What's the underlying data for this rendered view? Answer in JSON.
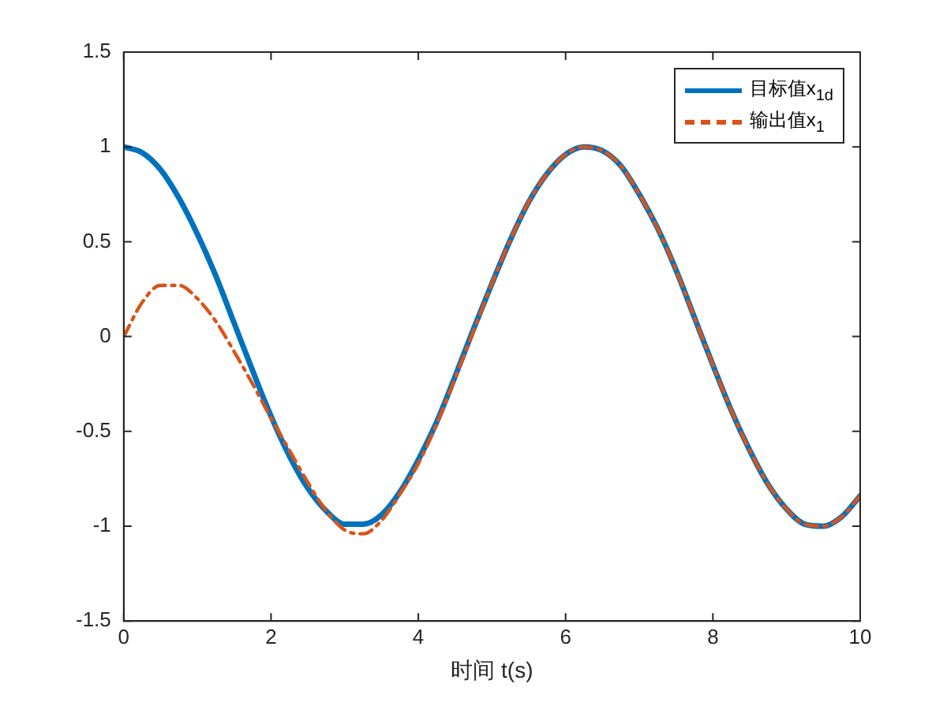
{
  "chart_data": {
    "type": "line",
    "xlabel": "时间 t(s)",
    "x": [
      0,
      0.25,
      0.5,
      0.75,
      1,
      1.25,
      1.5,
      1.75,
      2,
      2.25,
      2.5,
      2.75,
      3,
      3.25,
      3.5,
      3.75,
      4,
      4.25,
      4.5,
      4.75,
      5,
      5.25,
      5.5,
      5.75,
      6,
      6.25,
      6.5,
      6.75,
      7,
      7.25,
      7.5,
      7.75,
      8,
      8.25,
      8.5,
      8.75,
      9,
      9.25,
      9.5,
      9.75,
      10
    ],
    "series": [
      {
        "name": "目标值x$_{1d}$",
        "color": "#0072bd",
        "line_style": "solid",
        "values": [
          1,
          0.97,
          0.88,
          0.73,
          0.54,
          0.32,
          0.07,
          -0.18,
          -0.42,
          -0.63,
          -0.8,
          -0.92,
          -0.99,
          -0.99,
          -0.94,
          -0.82,
          -0.65,
          -0.45,
          -0.21,
          0.04,
          0.28,
          0.51,
          0.71,
          0.86,
          0.96,
          1,
          0.98,
          0.9,
          0.75,
          0.57,
          0.35,
          0.1,
          -0.15,
          -0.39,
          -0.6,
          -0.78,
          -0.91,
          -0.99,
          -1,
          -0.95,
          -0.84
        ]
      },
      {
        "name": "输出值x$_{1}$",
        "color": "#d95319",
        "line_style": "dashed",
        "values": [
          0,
          0.18,
          0.27,
          0.27,
          0.2,
          0.08,
          -0.08,
          -0.25,
          -0.43,
          -0.6,
          -0.77,
          -0.92,
          -1.02,
          -1.04,
          -0.97,
          -0.83,
          -0.67,
          -0.46,
          -0.22,
          0.03,
          0.28,
          0.51,
          0.71,
          0.86,
          0.96,
          1,
          0.98,
          0.9,
          0.75,
          0.57,
          0.35,
          0.1,
          -0.15,
          -0.39,
          -0.6,
          -0.78,
          -0.91,
          -0.99,
          -1,
          -0.95,
          -0.84
        ]
      }
    ],
    "xlim": [
      0,
      10
    ],
    "xticks": [
      0,
      2,
      4,
      6,
      8,
      10
    ],
    "ylim": [
      -1.5,
      1.5
    ],
    "yticks": [
      -1.5,
      -1,
      -0.5,
      0,
      0.5,
      1,
      1.5
    ],
    "grid": false,
    "legend": "top right"
  }
}
